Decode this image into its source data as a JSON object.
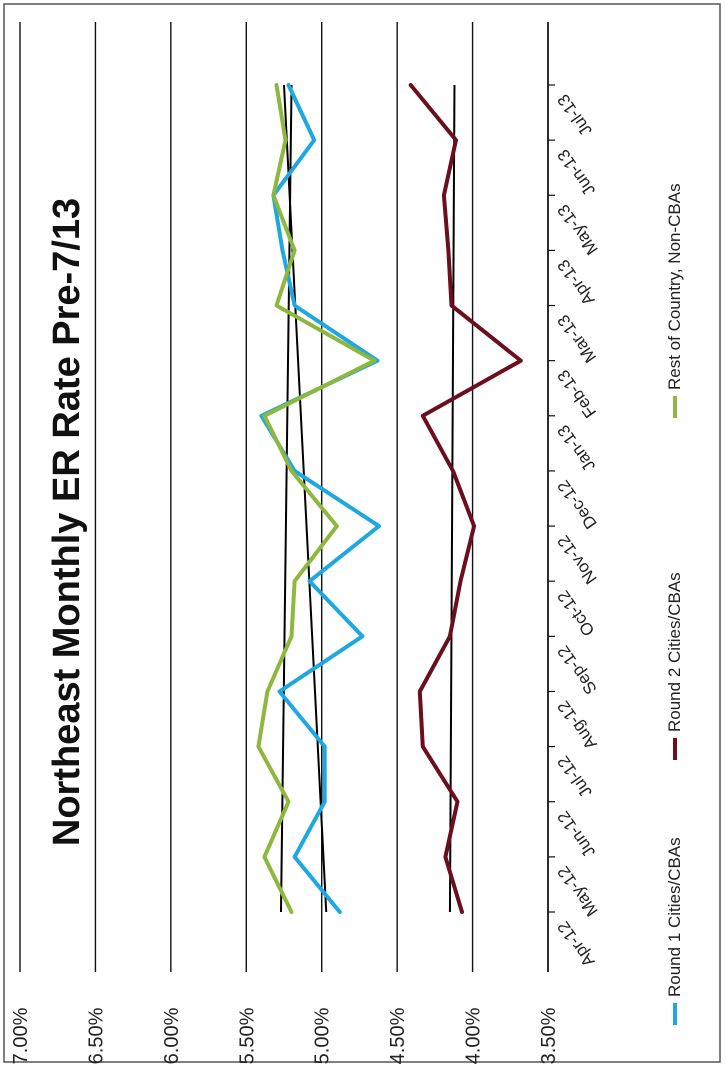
{
  "chart_data": {
    "type": "line",
    "title": "Northeast Monthly ER Rate Pre-7/13",
    "categories": [
      "Apr-12",
      "May-12",
      "Jun-12",
      "Jul-12",
      "Aug-12",
      "Sep-12",
      "Oct-12",
      "Nov-12",
      "Dec-12",
      "Jan-13",
      "Feb-13",
      "Mar-13",
      "Apr-13",
      "May-13",
      "Jun-13",
      "Jul-13"
    ],
    "y_ticks": [
      "3.50%",
      "4.00%",
      "4.50%",
      "5.00%",
      "5.50%",
      "6.00%",
      "6.50%",
      "7.00%"
    ],
    "ylim": [
      3.5,
      7.0
    ],
    "grid": true,
    "legend_position": "bottom",
    "series": [
      {
        "name": "Round 1 Cities/CBAs",
        "color": "#1ea7e1",
        "values": [
          4.88,
          5.18,
          4.98,
          4.98,
          5.28,
          4.73,
          5.08,
          4.62,
          5.18,
          5.4,
          4.63,
          5.18,
          5.26,
          5.32,
          5.05,
          5.22
        ]
      },
      {
        "name": "Round 2 Cities/CBAs",
        "color": "#6b0f1f",
        "values": [
          4.07,
          4.18,
          4.1,
          4.33,
          4.35,
          4.15,
          4.08,
          3.99,
          4.13,
          4.33,
          3.68,
          4.14,
          4.16,
          4.19,
          4.11,
          4.41
        ]
      },
      {
        "name": "Rest of Country,  Non-CBAs",
        "color": "#8db83d",
        "values": [
          5.2,
          5.38,
          5.22,
          5.42,
          5.36,
          5.2,
          5.18,
          4.9,
          5.2,
          5.38,
          4.65,
          5.3,
          5.18,
          5.32,
          5.24,
          5.3
        ]
      }
    ],
    "trendlines": [
      {
        "color": "#000000",
        "start": 5.27,
        "end": 5.2
      },
      {
        "color": "#000000",
        "start": 4.97,
        "end": 5.25
      },
      {
        "color": "#000000",
        "start": 4.15,
        "end": 4.12
      }
    ]
  }
}
